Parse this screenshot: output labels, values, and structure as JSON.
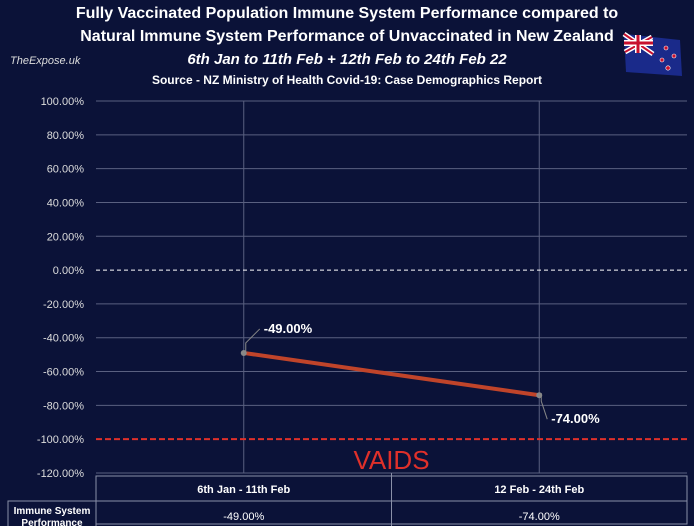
{
  "header": {
    "title_line1": "Fully Vaccinated Population Immune System Performance compared to",
    "title_line2": "Natural Immune System Performance of Unvaccinated in New Zealand",
    "subtitle": "6th Jan to 11th Feb + 12th Feb to 24th Feb 22",
    "source": "Source - NZ Ministry of Health Covid-19: Case Demographics Report",
    "brand": "TheExpose.uk"
  },
  "chart_data": {
    "type": "line",
    "categories": [
      "6th Jan - 11th Feb",
      "12 Feb - 24th Feb"
    ],
    "series": [
      {
        "name": "Immune System Performance",
        "values": [
          -49,
          -74
        ],
        "labels": [
          "-49.00%",
          "-74.00%"
        ],
        "color": "#c0442a"
      }
    ],
    "ylim": [
      -120,
      100
    ],
    "yticks": [
      100,
      80,
      60,
      40,
      20,
      0,
      -20,
      -40,
      -60,
      -80,
      -100,
      -120
    ],
    "ytick_labels": [
      "100.00%",
      "80.00%",
      "60.00%",
      "40.00%",
      "20.00%",
      "0.00%",
      "-20.00%",
      "-40.00%",
      "-60.00%",
      "-80.00%",
      "-100.00%",
      "-120.00%"
    ],
    "reference_lines": [
      {
        "value": 0,
        "style": "dashed",
        "color": "#ffffff"
      },
      {
        "value": -100,
        "style": "dashed",
        "color": "#e0302a",
        "label": "VAIDS"
      }
    ],
    "table": {
      "row_label": "Immune System Performance",
      "values": [
        "-49.00%",
        "-74.00%"
      ]
    }
  }
}
